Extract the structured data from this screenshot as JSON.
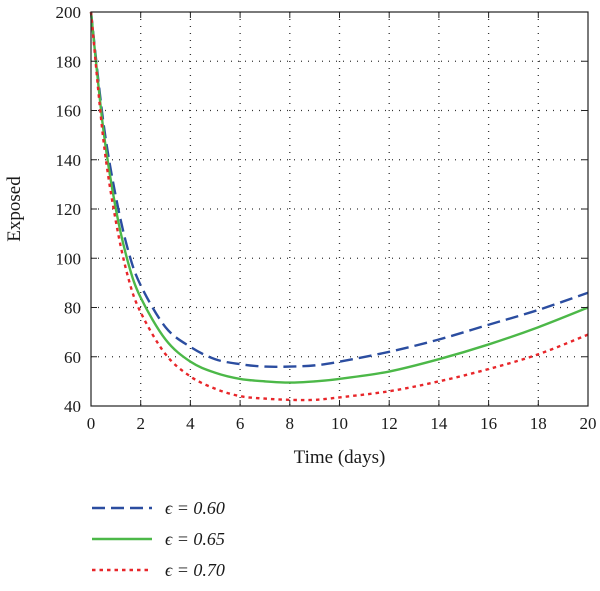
{
  "chart_data": {
    "type": "line",
    "title": "",
    "xlabel": "Time (days)",
    "ylabel": "Exposed",
    "xlim": [
      0,
      20
    ],
    "ylim": [
      40,
      200
    ],
    "xticks": [
      0,
      2,
      4,
      6,
      8,
      10,
      12,
      14,
      16,
      18,
      20
    ],
    "yticks": [
      40,
      60,
      80,
      100,
      120,
      140,
      160,
      180,
      200
    ],
    "grid": true,
    "legend_position": "bottom-left",
    "series": [
      {
        "name": "ϵ = 0.60",
        "color": "#2b4da0",
        "dash": "dashed",
        "x": [
          0,
          0.5,
          1,
          1.5,
          2,
          3,
          4,
          5,
          6,
          7,
          8,
          9,
          10,
          12,
          14,
          16,
          18,
          20
        ],
        "y": [
          200,
          155,
          125,
          103,
          89,
          72,
          64,
          59,
          57,
          56,
          56,
          56.5,
          58,
          62,
          67,
          73,
          79,
          86
        ]
      },
      {
        "name": "ϵ = 0.65",
        "color": "#4cb848",
        "dash": "solid",
        "x": [
          0,
          0.5,
          1,
          1.5,
          2,
          3,
          4,
          5,
          6,
          7,
          8,
          9,
          10,
          12,
          14,
          16,
          18,
          20
        ],
        "y": [
          200,
          152,
          120,
          98,
          84,
          67,
          58,
          53.5,
          51,
          50,
          49.5,
          50,
          51,
          54,
          59,
          65,
          72,
          80
        ]
      },
      {
        "name": "ϵ = 0.70",
        "color": "#e8262a",
        "dash": "dotted",
        "x": [
          0,
          0.5,
          1,
          1.5,
          2,
          3,
          4,
          5,
          6,
          7,
          8,
          9,
          10,
          12,
          14,
          16,
          18,
          20
        ],
        "y": [
          200,
          148,
          115,
          92,
          78,
          61,
          52,
          47,
          44,
          43,
          42.5,
          42.5,
          43.5,
          46,
          50,
          55,
          61,
          69
        ]
      }
    ]
  }
}
